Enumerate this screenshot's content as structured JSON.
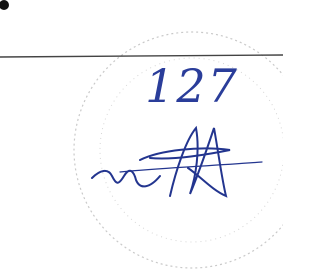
{
  "document": {
    "handwritten_number": "127"
  }
}
